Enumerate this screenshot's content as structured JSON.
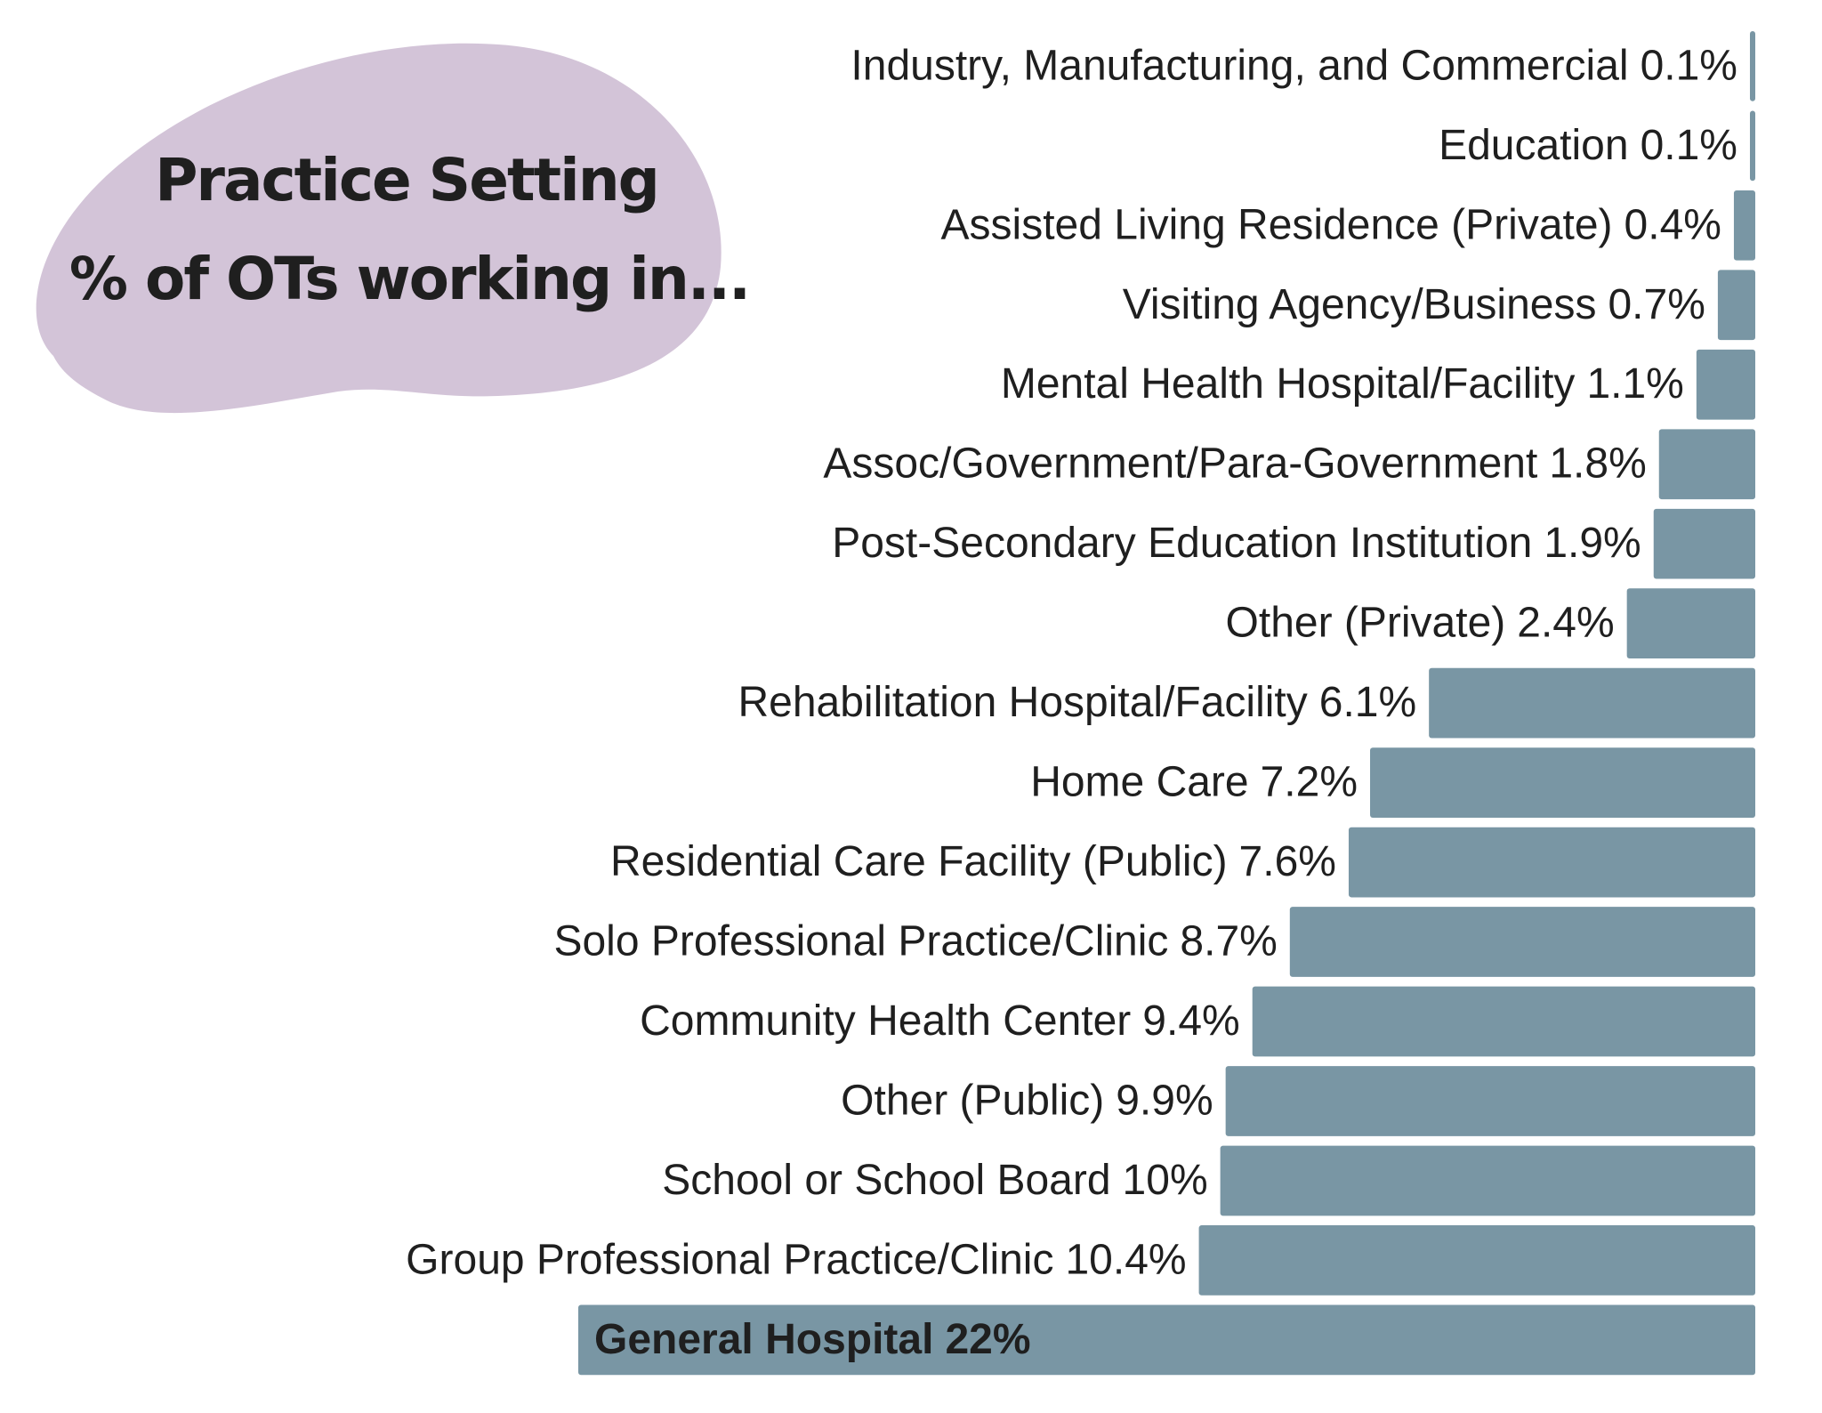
{
  "chart_data": {
    "type": "hbar",
    "title": "Practice Setting",
    "subtitle": "% of OTs working in...",
    "categories": [
      "Industry, Manufacturing, and Commercial",
      "Education",
      "Assisted Living Residence (Private)",
      "Visiting Agency/Business",
      "Mental Health Hospital/Facility",
      "Assoc/Government/Para-Government",
      "Post-Secondary Education Institution",
      "Other (Private)",
      "Rehabilitation Hospital/Facility",
      "Home Care",
      "Residential Care Facility (Public)",
      "Solo Professional Practice/Clinic",
      "Community Health Center",
      "Other (Public)",
      "School or School Board",
      "Group Professional Practice/Clinic",
      "General Hospital"
    ],
    "values": [
      0.1,
      0.1,
      0.4,
      0.7,
      1.1,
      1.8,
      1.9,
      2.4,
      6.1,
      7.2,
      7.6,
      8.7,
      9.4,
      9.9,
      10,
      10.4,
      22
    ],
    "value_labels": [
      "0.1%",
      "0.1%",
      "0.4%",
      "0.7%",
      "1.1%",
      "1.8%",
      "1.9%",
      "2.4%",
      "6.1%",
      "7.2%",
      "7.6%",
      "8.7%",
      "9.4%",
      "9.9%",
      "10%",
      "10.4%",
      "22%"
    ],
    "color": "#7996a4"
  }
}
